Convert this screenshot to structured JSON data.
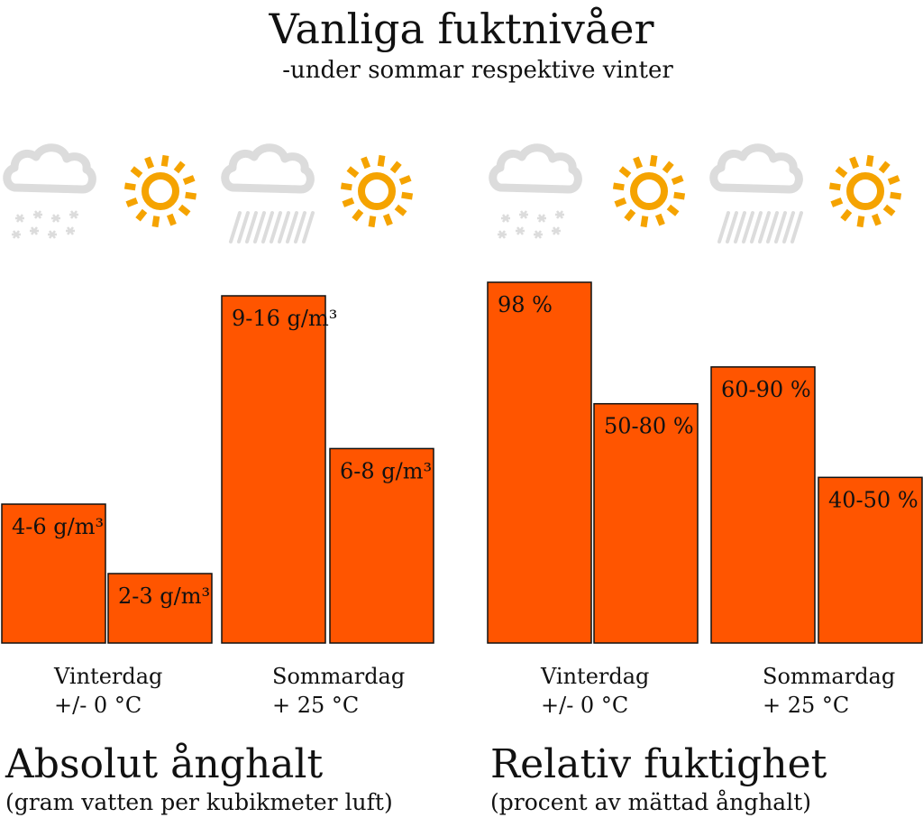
{
  "title": "Vanliga fuktnivåer",
  "subtitle": "-under sommar respektive vinter",
  "colors": {
    "bar": "#ff5500",
    "barStroke": "#111111",
    "sun": "#f5a300",
    "cloud": "#dcdcdc"
  },
  "icons": [
    "cloud-snow-icon",
    "sun-icon",
    "cloud-rain-icon",
    "sun-icon",
    "cloud-snow-icon",
    "sun-icon",
    "cloud-rain-icon",
    "sun-icon"
  ],
  "chart_data": [
    {
      "type": "bar",
      "title": "Absolut ånghalt",
      "subtitle": "(gram vatten per kubikmeter luft)",
      "categories": [
        {
          "line1": "Vinterdag",
          "line2": "+/- 0 °C"
        },
        {
          "line1": "Sommardag",
          "line2": "+ 25 °C"
        }
      ],
      "bars": [
        {
          "category": "Vinterdag",
          "condition": "molnigt",
          "label": "4-6 g/m³",
          "value": 5
        },
        {
          "category": "Vinterdag",
          "condition": "soligt",
          "label": "2-3 g/m³",
          "value": 2.5
        },
        {
          "category": "Sommardag",
          "condition": "molnigt",
          "label": "9-16 g/m³",
          "value": 12.5
        },
        {
          "category": "Sommardag",
          "condition": "soligt",
          "label": "6-8 g/m³",
          "value": 7
        }
      ],
      "unit": "g/m³"
    },
    {
      "type": "bar",
      "title": "Relativ fuktighet",
      "subtitle": "(procent av mättad ånghalt)",
      "categories": [
        {
          "line1": "Vinterdag",
          "line2": "+/- 0 °C"
        },
        {
          "line1": "Sommardag",
          "line2": "+ 25 °C"
        }
      ],
      "bars": [
        {
          "category": "Vinterdag",
          "condition": "molnigt",
          "label": "98 %",
          "value": 98
        },
        {
          "category": "Vinterdag",
          "condition": "soligt",
          "label": "50-80 %",
          "value": 65
        },
        {
          "category": "Sommardag",
          "condition": "molnigt",
          "label": "60-90 %",
          "value": 75
        },
        {
          "category": "Sommardag",
          "condition": "soligt",
          "label": "40-50 %",
          "value": 45
        }
      ],
      "unit": "%"
    }
  ]
}
